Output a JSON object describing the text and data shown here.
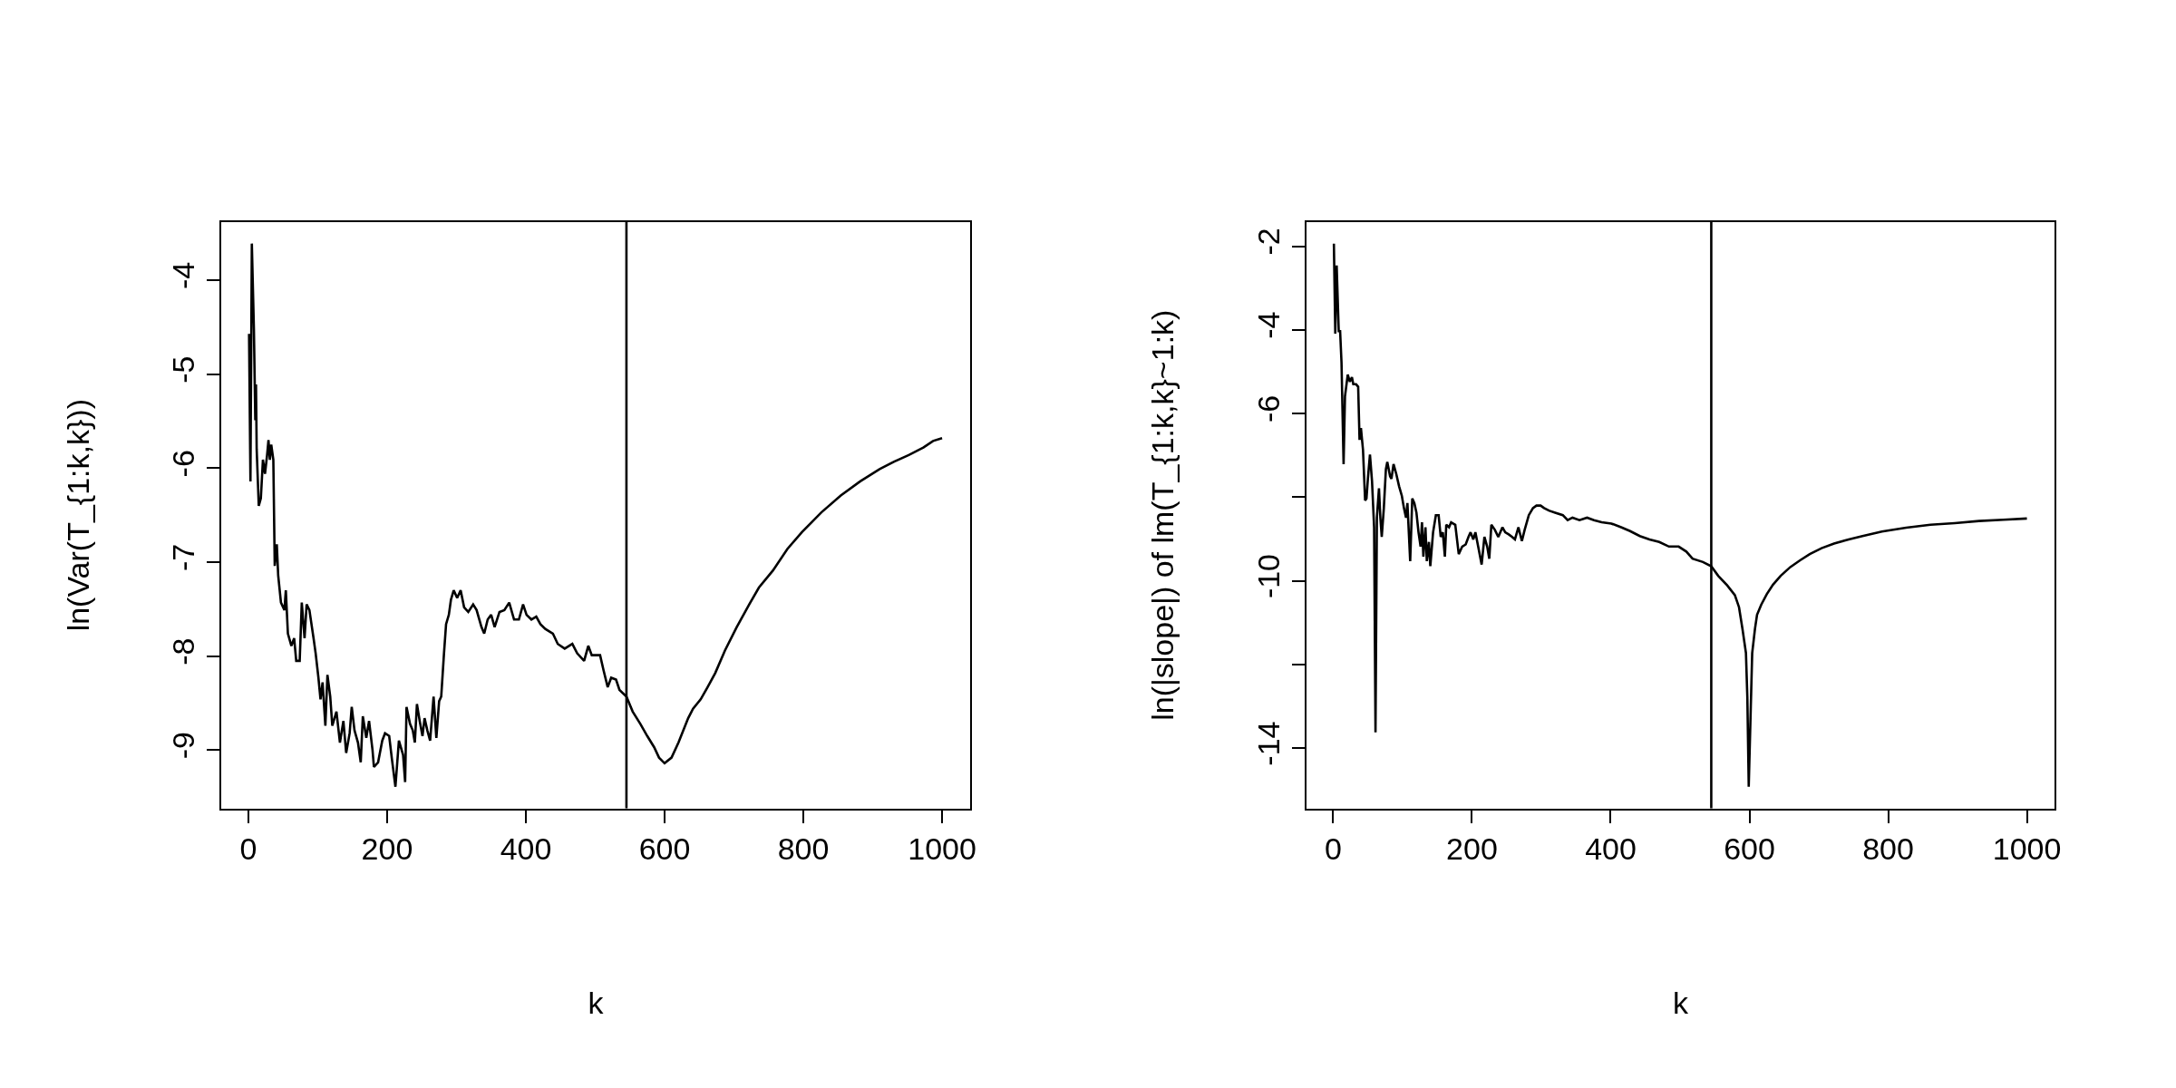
{
  "chart_data": [
    {
      "type": "line",
      "xlabel": "k",
      "ylabel": "ln(Var(T_{1:k,k}))",
      "xlim": [
        -39,
        1040
      ],
      "ylim": [
        -9.62,
        -3.38
      ],
      "xticks": [
        0,
        200,
        400,
        600,
        800,
        1000
      ],
      "yticks": [
        -9,
        -8,
        -7,
        -6,
        -5,
        -4
      ],
      "ref_lines": [
        {
          "axis": "x",
          "value": 545,
          "color": "#000000"
        }
      ],
      "series": [
        {
          "color": "#000000",
          "x": [
            1,
            3,
            5,
            8,
            10,
            11,
            12,
            15,
            18,
            21,
            24,
            27,
            29,
            31,
            33,
            36,
            38,
            41,
            43,
            47,
            52,
            54,
            57,
            62,
            66,
            69,
            74,
            77,
            81,
            84,
            88,
            94,
            97,
            101,
            104,
            107,
            111,
            114,
            118,
            121,
            127,
            132,
            137,
            141,
            146,
            149,
            153,
            158,
            162,
            165,
            170,
            174,
            179,
            181,
            187,
            193,
            197,
            203,
            207,
            212,
            217,
            223,
            226,
            228,
            233,
            237,
            240,
            243,
            247,
            251,
            254,
            258,
            262,
            267,
            271,
            275,
            278,
            282,
            285,
            289,
            292,
            296,
            301,
            306,
            311,
            317,
            324,
            329,
            336,
            340,
            345,
            350,
            355,
            362,
            369,
            376,
            383,
            390,
            396,
            401,
            408,
            415,
            421,
            428,
            439,
            446,
            456,
            467,
            474,
            484,
            490,
            495,
            502,
            507,
            512,
            518,
            523,
            530,
            535,
            545,
            554,
            565,
            575,
            585,
            592,
            600,
            610,
            620,
            627,
            634,
            641,
            652,
            662,
            673,
            687,
            704,
            722,
            736,
            756,
            777,
            798,
            826,
            854,
            882,
            910,
            931,
            952,
            973,
            987,
            1000
          ],
          "values": [
            -4.57,
            -6.14,
            -3.61,
            -4.52,
            -5.49,
            -5.11,
            -5.8,
            -6.4,
            -6.32,
            -5.91,
            -6.06,
            -5.86,
            -5.7,
            -5.91,
            -5.75,
            -5.91,
            -7.04,
            -6.81,
            -7.14,
            -7.43,
            -7.51,
            -7.3,
            -7.76,
            -7.89,
            -7.81,
            -8.05,
            -8.05,
            -7.43,
            -7.81,
            -7.45,
            -7.51,
            -7.81,
            -7.97,
            -8.23,
            -8.46,
            -8.28,
            -8.74,
            -8.2,
            -8.43,
            -8.74,
            -8.59,
            -8.92,
            -8.69,
            -9.03,
            -8.82,
            -8.54,
            -8.79,
            -8.92,
            -9.13,
            -8.64,
            -8.87,
            -8.69,
            -9.0,
            -9.18,
            -9.13,
            -8.9,
            -8.82,
            -8.85,
            -9.1,
            -9.39,
            -8.9,
            -9.05,
            -9.34,
            -8.54,
            -8.72,
            -8.79,
            -8.92,
            -8.51,
            -8.69,
            -8.85,
            -8.66,
            -8.79,
            -8.9,
            -8.43,
            -8.87,
            -8.48,
            -8.43,
            -7.97,
            -7.66,
            -7.56,
            -7.4,
            -7.3,
            -7.38,
            -7.3,
            -7.48,
            -7.53,
            -7.45,
            -7.51,
            -7.69,
            -7.76,
            -7.61,
            -7.56,
            -7.69,
            -7.53,
            -7.51,
            -7.43,
            -7.61,
            -7.61,
            -7.45,
            -7.56,
            -7.61,
            -7.58,
            -7.66,
            -7.71,
            -7.76,
            -7.87,
            -7.92,
            -7.87,
            -7.97,
            -8.05,
            -7.89,
            -7.99,
            -7.99,
            -7.99,
            -8.15,
            -8.33,
            -8.23,
            -8.25,
            -8.36,
            -8.43,
            -8.59,
            -8.72,
            -8.85,
            -8.97,
            -9.08,
            -9.14,
            -9.08,
            -8.92,
            -8.79,
            -8.66,
            -8.56,
            -8.46,
            -8.33,
            -8.18,
            -7.94,
            -7.69,
            -7.45,
            -7.27,
            -7.09,
            -6.86,
            -6.68,
            -6.47,
            -6.29,
            -6.14,
            -6.01,
            -5.93,
            -5.86,
            -5.78,
            -5.71,
            -5.68
          ]
        }
      ]
    },
    {
      "type": "line",
      "xlabel": "k",
      "ylabel": "ln(|slope|) of lm(T_{1:k,k}~1:k)",
      "xlim": [
        -39,
        1040
      ],
      "ylim": [
        -15.44,
        -1.42
      ],
      "xticks": [
        0,
        200,
        400,
        600,
        800,
        1000
      ],
      "yticks": [
        -2,
        -4,
        -6,
        {
          "value": -8,
          "label": null
        },
        -10,
        {
          "value": -12,
          "label": null
        },
        -14
      ],
      "ref_lines": [
        {
          "axis": "x",
          "value": 545,
          "color": "#000000"
        }
      ],
      "series": [
        {
          "color": "#000000",
          "x": [
            1,
            3,
            5,
            8,
            10,
            12,
            15,
            17,
            21,
            24,
            27,
            29,
            33,
            36,
            38,
            40,
            43,
            46,
            48,
            50,
            53,
            56,
            59,
            61,
            63,
            66,
            68,
            70,
            73,
            76,
            78,
            82,
            84,
            87,
            91,
            95,
            99,
            102,
            105,
            107,
            111,
            114,
            117,
            120,
            123,
            126,
            128,
            130,
            133,
            135,
            138,
            140,
            144,
            148,
            152,
            155,
            158,
            161,
            163,
            167,
            170,
            176,
            181,
            186,
            191,
            195,
            198,
            202,
            205,
            209,
            214,
            218,
            222,
            225,
            228,
            233,
            238,
            244,
            248,
            253,
            258,
            262,
            267,
            272,
            276,
            282,
            288,
            293,
            299,
            304,
            311,
            320,
            331,
            338,
            345,
            355,
            366,
            376,
            387,
            401,
            415,
            428,
            442,
            456,
            470,
            484,
            498,
            509,
            518,
            533,
            545,
            555,
            568,
            579,
            585,
            590,
            595,
            597,
            599,
            602,
            604,
            608,
            611,
            617,
            625,
            634,
            645,
            659,
            673,
            687,
            704,
            722,
            743,
            763,
            791,
            826,
            861,
            896,
            931,
            966,
            1000
          ],
          "values": [
            -1.94,
            -4.09,
            -2.46,
            -4.03,
            -4.03,
            -4.78,
            -7.21,
            -5.59,
            -5.07,
            -5.24,
            -5.13,
            -5.3,
            -5.3,
            -5.36,
            -6.63,
            -6.35,
            -6.87,
            -8.08,
            -8.03,
            -7.56,
            -6.98,
            -7.62,
            -8.72,
            -13.62,
            -8.49,
            -7.79,
            -8.49,
            -8.95,
            -8.26,
            -7.33,
            -7.16,
            -7.5,
            -7.56,
            -7.21,
            -7.45,
            -7.74,
            -7.97,
            -8.26,
            -8.49,
            -8.14,
            -9.53,
            -8.03,
            -8.14,
            -8.37,
            -8.84,
            -9.18,
            -8.6,
            -9.42,
            -8.72,
            -9.53,
            -9.07,
            -9.65,
            -8.84,
            -8.43,
            -8.43,
            -8.95,
            -8.84,
            -9.42,
            -8.66,
            -8.72,
            -8.6,
            -8.66,
            -9.36,
            -9.18,
            -9.13,
            -8.95,
            -8.84,
            -9.01,
            -8.84,
            -9.18,
            -9.61,
            -8.95,
            -9.18,
            -9.47,
            -8.66,
            -8.78,
            -8.95,
            -8.72,
            -8.84,
            -8.89,
            -8.95,
            -9.01,
            -8.72,
            -9.05,
            -8.78,
            -8.43,
            -8.26,
            -8.2,
            -8.2,
            -8.26,
            -8.32,
            -8.37,
            -8.43,
            -8.55,
            -8.49,
            -8.55,
            -8.49,
            -8.55,
            -8.6,
            -8.63,
            -8.72,
            -8.81,
            -8.93,
            -9.01,
            -9.07,
            -9.18,
            -9.18,
            -9.3,
            -9.47,
            -9.55,
            -9.65,
            -9.88,
            -10.11,
            -10.34,
            -10.63,
            -11.15,
            -11.73,
            -12.78,
            -14.92,
            -13.01,
            -11.73,
            -11.15,
            -10.81,
            -10.57,
            -10.32,
            -10.09,
            -9.88,
            -9.67,
            -9.51,
            -9.36,
            -9.22,
            -9.11,
            -9.01,
            -8.93,
            -8.82,
            -8.73,
            -8.66,
            -8.62,
            -8.57,
            -8.54,
            -8.51
          ]
        }
      ]
    }
  ]
}
